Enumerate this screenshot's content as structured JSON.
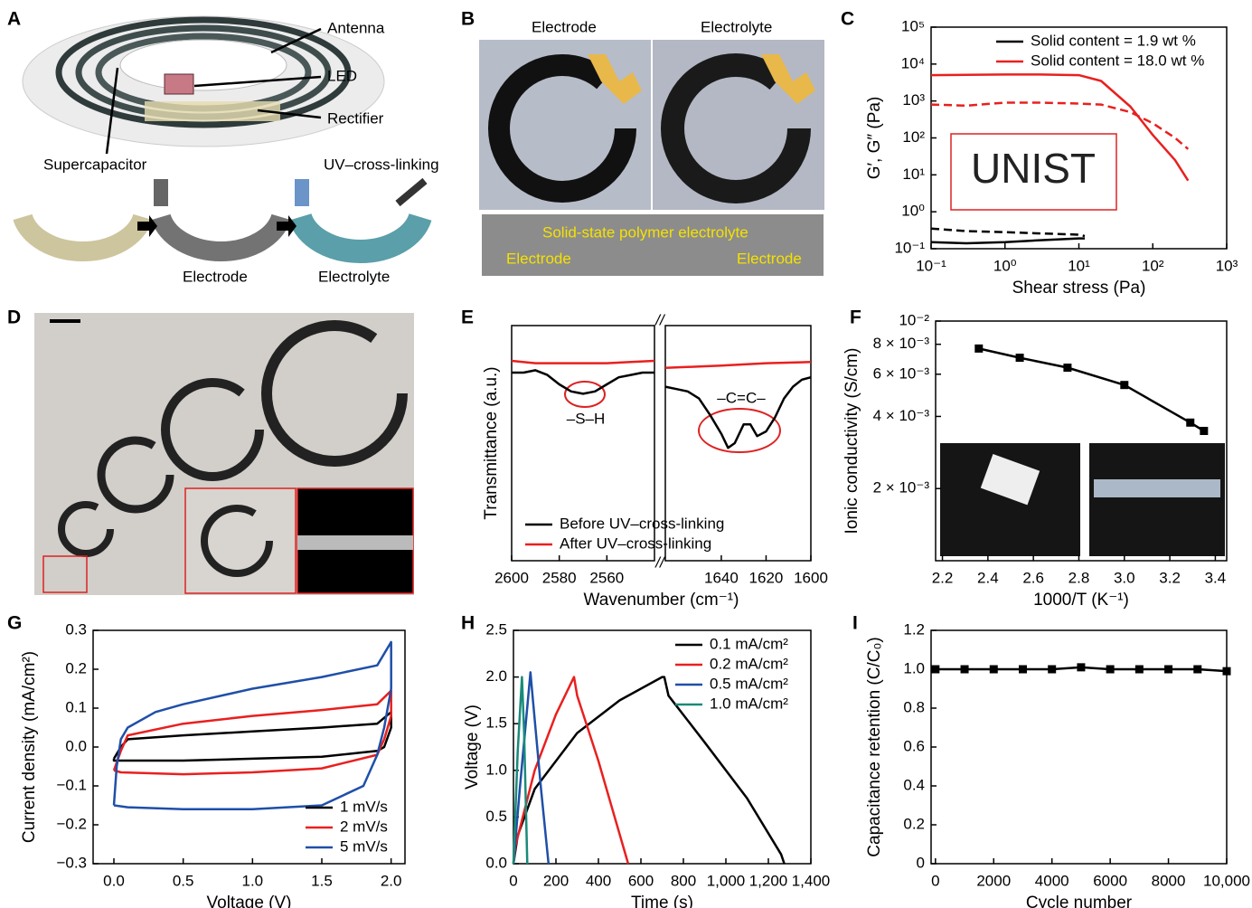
{
  "figures": [
    {
      "panel": "A",
      "labels": [
        "Antenna",
        "LED",
        "Rectifier",
        "Supercapacitor",
        "UV–cross-linking",
        "Electrode",
        "Electrolyte"
      ]
    },
    {
      "panel": "B",
      "labels": [
        "Electrode",
        "Electrolyte",
        "Solid-state polymer electrolyte",
        "Electrode",
        "Electrode"
      ]
    },
    {
      "panel": "D"
    }
  ],
  "chart_data": [
    {
      "panel": "C",
      "type": "line",
      "xlog": true,
      "ylog": true,
      "xlim": [
        0.1,
        1000
      ],
      "ylim": [
        0.1,
        100000
      ],
      "xticks": [
        {
          "value": 0.1,
          "label": "10⁻¹"
        },
        {
          "value": 1,
          "label": "10⁰"
        },
        {
          "value": 10,
          "label": "10¹"
        },
        {
          "value": 100,
          "label": "10²"
        },
        {
          "value": 1000,
          "label": "10³"
        }
      ],
      "yticks": [
        {
          "value": 0.1,
          "label": "10⁻¹"
        },
        {
          "value": 1,
          "label": "10⁰"
        },
        {
          "value": 10,
          "label": "10¹"
        },
        {
          "value": 100,
          "label": "10²"
        },
        {
          "value": 1000,
          "label": "10³"
        },
        {
          "value": 10000,
          "label": "10⁴"
        },
        {
          "value": 100000,
          "label": "10⁵"
        }
      ],
      "xlabel": "Shear stress (Pa)",
      "ylabel": "G′, G″ (Pa)",
      "legend": "upper right",
      "inset_text": "UNIST",
      "series": [
        {
          "name": "Solid content = 1.9 wt %",
          "color": "#000000",
          "x": [
            0.1,
            0.3,
            1,
            3,
            10,
            12
          ],
          "storage_modulus": [
            0.15,
            0.14,
            0.15,
            0.17,
            0.19,
            0.19
          ],
          "loss_modulus": [
            0.35,
            0.3,
            0.28,
            0.26,
            0.24,
            0.22
          ]
        },
        {
          "name": "Solid content = 18.0 wt %",
          "color": "#e8201f",
          "x": [
            0.1,
            0.3,
            1,
            3,
            10,
            20,
            50,
            100,
            200,
            300
          ],
          "storage_modulus": [
            5000,
            5100,
            5200,
            5200,
            5000,
            3500,
            700,
            120,
            25,
            7
          ],
          "loss_modulus": [
            800,
            750,
            900,
            900,
            850,
            800,
            500,
            250,
            100,
            50
          ]
        }
      ]
    },
    {
      "panel": "E",
      "type": "line",
      "x_segments": [
        {
          "xlim": [
            2600,
            2540
          ],
          "xticks": [
            2600,
            2580,
            2560
          ]
        },
        {
          "xlim": [
            1665,
            1600
          ],
          "xticks": [
            1640,
            1620,
            1600
          ]
        }
      ],
      "ylim": [
        0,
        1
      ],
      "xlabel": "Wavenumber (cm⁻¹)",
      "ylabel": "Transmittance (a.u.)",
      "legend": "lower left",
      "break_label": "//",
      "annotations": [
        "–S–H",
        "–C=C–"
      ],
      "series": [
        {
          "name": "Before UV–cross-linking",
          "color": "#000000",
          "x": [
            2600,
            2595,
            2590,
            2585,
            2580,
            2575,
            2570,
            2565,
            2560,
            2555,
            2550,
            2545,
            2540,
            1665,
            1660,
            1655,
            1650,
            1645,
            1640,
            1637,
            1634,
            1630,
            1627,
            1624,
            1620,
            1616,
            1612,
            1608,
            1604,
            1600
          ],
          "values": [
            0.8,
            0.8,
            0.81,
            0.79,
            0.75,
            0.72,
            0.71,
            0.72,
            0.75,
            0.78,
            0.79,
            0.8,
            0.8,
            0.74,
            0.73,
            0.72,
            0.69,
            0.62,
            0.54,
            0.48,
            0.5,
            0.58,
            0.58,
            0.53,
            0.55,
            0.61,
            0.69,
            0.74,
            0.77,
            0.78
          ]
        },
        {
          "name": "After UV–cross-linking",
          "color": "#e8201f",
          "x": [
            2600,
            2590,
            2580,
            2570,
            2560,
            2550,
            2540,
            1665,
            1640,
            1620,
            1600
          ],
          "values": [
            0.85,
            0.84,
            0.84,
            0.84,
            0.84,
            0.845,
            0.85,
            0.82,
            0.83,
            0.84,
            0.845
          ]
        }
      ]
    },
    {
      "panel": "F",
      "type": "line",
      "markers": true,
      "ylog": true,
      "xlim": [
        2.17,
        3.45
      ],
      "ylim": [
        0.001,
        0.01
      ],
      "xticks": [
        2.2,
        2.4,
        2.6,
        2.8,
        {
          "value": 3,
          "label": "3.0"
        },
        3.2,
        3.4
      ],
      "yticks": [
        {
          "value": 0.002,
          "label": "2 × 10⁻³"
        },
        {
          "value": 0.004,
          "label": "4 × 10⁻³"
        },
        {
          "value": 0.006,
          "label": "6 × 10⁻³"
        },
        {
          "value": 0.008,
          "label": "8 × 10⁻³"
        },
        {
          "value": 0.01,
          "label": "10⁻²"
        }
      ],
      "xlabel": "1000/T (K⁻¹)",
      "ylabel": "Ionic conductivity (S/cm)",
      "series": [
        {
          "color": "#000000",
          "x": [
            2.36,
            2.54,
            2.75,
            3.0,
            3.29,
            3.35
          ],
          "values": [
            0.00768,
            0.00703,
            0.00639,
            0.00541,
            0.00377,
            0.00348
          ]
        }
      ]
    },
    {
      "panel": "G",
      "type": "line",
      "xlim": [
        -0.15,
        2.1
      ],
      "ylim": [
        -0.3,
        0.3
      ],
      "xticks": [
        {
          "value": 0,
          "label": "0.0"
        },
        0.5,
        {
          "value": 1,
          "label": "1.0"
        },
        1.5,
        {
          "value": 2,
          "label": "2.0"
        }
      ],
      "yticks": [
        {
          "value": -0.3,
          "label": "−0.3"
        },
        {
          "value": -0.2,
          "label": "−0.2"
        },
        {
          "value": -0.1,
          "label": "−0.1"
        },
        {
          "value": 0,
          "label": "0.0"
        },
        0.1,
        0.2,
        0.3
      ],
      "xlabel": "Voltage (V)",
      "ylabel": "Current density (mA/cm²)",
      "legend": "lower right",
      "series": [
        {
          "name": "1 mV/s",
          "color": "#000000",
          "x": [
            0,
            0.05,
            0.1,
            0.5,
            1,
            1.5,
            1.9,
            2.0,
            2.0,
            1.95,
            1.9,
            1.5,
            1,
            0.5,
            0,
            0
          ],
          "values": [
            -0.03,
            0.0,
            0.02,
            0.03,
            0.04,
            0.05,
            0.06,
            0.09,
            0.05,
            0.0,
            -0.01,
            -0.025,
            -0.03,
            -0.035,
            -0.035,
            -0.03
          ]
        },
        {
          "name": "2 mV/s",
          "color": "#e8201f",
          "x": [
            0,
            0.05,
            0.1,
            0.5,
            1,
            1.5,
            1.9,
            2.0,
            2.0,
            1.95,
            1.9,
            1.5,
            1,
            0.5,
            0.05,
            0
          ],
          "values": [
            -0.06,
            -0.01,
            0.03,
            0.06,
            0.08,
            0.095,
            0.11,
            0.145,
            0.08,
            0.02,
            -0.02,
            -0.055,
            -0.065,
            -0.07,
            -0.065,
            -0.06
          ]
        },
        {
          "name": "5 mV/s",
          "color": "#1f4fa8",
          "x": [
            0,
            0.02,
            0.05,
            0.1,
            0.3,
            0.5,
            1,
            1.5,
            1.9,
            2.0,
            2.0,
            1.95,
            1.9,
            1.8,
            1.5,
            1,
            0.5,
            0.1,
            0
          ],
          "values": [
            -0.15,
            -0.05,
            0.02,
            0.05,
            0.09,
            0.11,
            0.15,
            0.18,
            0.21,
            0.27,
            0.15,
            0.05,
            -0.02,
            -0.1,
            -0.15,
            -0.16,
            -0.16,
            -0.155,
            -0.15
          ]
        }
      ]
    },
    {
      "panel": "H",
      "type": "line",
      "xlim": [
        0,
        1400
      ],
      "ylim": [
        0,
        2.5
      ],
      "xticks": [
        0,
        200,
        400,
        600,
        800,
        {
          "value": 1000,
          "label": "1,000"
        },
        {
          "value": 1200,
          "label": "1,200"
        },
        {
          "value": 1400,
          "label": "1,400"
        }
      ],
      "yticks": [
        {
          "value": 0,
          "label": "0.0"
        },
        0.5,
        {
          "value": 1,
          "label": "1.0"
        },
        1.5,
        {
          "value": 2,
          "label": "2.0"
        },
        2.5
      ],
      "xlabel": "Time (s)",
      "ylabel": "Voltage (V)",
      "legend": "upper right",
      "series": [
        {
          "name": "0.1 mA/cm²",
          "color": "#000000",
          "x": [
            0,
            20,
            100,
            300,
            500,
            700,
            710,
            730,
            900,
            1100,
            1260,
            1275
          ],
          "values": [
            0,
            0.3,
            0.8,
            1.4,
            1.75,
            2.0,
            2.0,
            1.8,
            1.3,
            0.7,
            0.1,
            0
          ]
        },
        {
          "name": "0.2 mA/cm²",
          "color": "#e8201f",
          "x": [
            0,
            10,
            100,
            200,
            285,
            300,
            400,
            540
          ],
          "values": [
            0,
            0.2,
            1.0,
            1.6,
            2.0,
            1.8,
            1.1,
            0
          ]
        },
        {
          "name": "0.5 mA/cm²",
          "color": "#1f4fa8",
          "x": [
            0,
            30,
            80,
            90,
            130,
            165
          ],
          "values": [
            0,
            0.8,
            2.05,
            1.8,
            0.8,
            0
          ]
        },
        {
          "name": "1.0 mA/cm²",
          "color": "#1a8a7a",
          "x": [
            0,
            20,
            40,
            50,
            65
          ],
          "values": [
            0,
            1.2,
            2.0,
            1.4,
            0
          ]
        }
      ]
    },
    {
      "panel": "I",
      "type": "line",
      "markers": true,
      "xlim": [
        -150,
        10000
      ],
      "ylim": [
        0,
        1.2
      ],
      "xticks": [
        0,
        2000,
        4000,
        6000,
        8000,
        {
          "value": 10000,
          "label": "10,000"
        }
      ],
      "yticks": [
        0,
        0.2,
        0.4,
        0.6,
        0.8,
        {
          "value": 1,
          "label": "1.0"
        },
        1.2
      ],
      "xlabel": "Cycle number",
      "ylabel": "Capacitance retention (C/C₀)",
      "series": [
        {
          "color": "#000000",
          "x": [
            0,
            1000,
            2000,
            3000,
            4000,
            5000,
            6000,
            7000,
            8000,
            9000,
            10000
          ],
          "values": [
            1.0,
            1.0,
            1.0,
            1.0,
            1.0,
            1.01,
            1.0,
            1.0,
            1.0,
            1.0,
            0.99
          ]
        }
      ]
    }
  ]
}
